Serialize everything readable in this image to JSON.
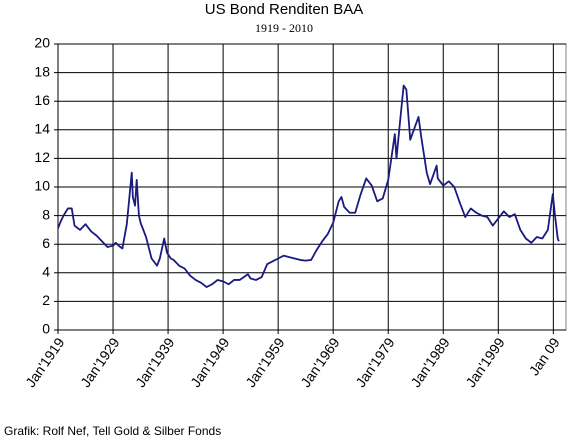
{
  "chart_data": {
    "type": "line",
    "title": "US Bond Renditen BAA",
    "subtitle": "1919 - 2010",
    "annotation": "Grafik: Rolf Nef, Tell Gold & Silber Fonds",
    "x": [
      1919,
      1919.5,
      1920,
      1920.8,
      1921.5,
      1922,
      1923,
      1924,
      1925,
      1926,
      1927,
      1928,
      1929,
      1929.5,
      1930,
      1930.7,
      1931.5,
      1932.4,
      1932.6,
      1933,
      1933.3,
      1933.7,
      1934,
      1934.7,
      1935,
      1936,
      1937,
      1937.5,
      1938.3,
      1938.8,
      1939.5,
      1940,
      1941,
      1942,
      1943,
      1944,
      1945,
      1946,
      1947,
      1948,
      1949,
      1950,
      1951,
      1952,
      1953.5,
      1954,
      1955,
      1956,
      1957,
      1958,
      1959,
      1960,
      1961,
      1962,
      1963,
      1964,
      1965,
      1966,
      1967,
      1968,
      1969,
      1970,
      1970.5,
      1971,
      1972,
      1973,
      1974,
      1975,
      1976,
      1977,
      1978,
      1979,
      1980.2,
      1980.5,
      1981,
      1981.8,
      1982.3,
      1982.8,
      1983,
      1984.5,
      1985,
      1986,
      1986.6,
      1987.8,
      1988,
      1989,
      1990,
      1991,
      1992,
      1993,
      1994,
      1995,
      1996,
      1997,
      1998,
      1999,
      2000,
      2001,
      2002,
      2003,
      2004,
      2005,
      2006,
      2007,
      2008,
      2008.9,
      2009.3,
      2009.8,
      2010
    ],
    "series": [
      {
        "name": "BAA",
        "color": "#1a1a80",
        "values": [
          7.1,
          7.6,
          8.0,
          8.5,
          8.5,
          7.3,
          7.0,
          7.4,
          6.9,
          6.6,
          6.2,
          5.8,
          5.9,
          6.1,
          5.9,
          5.7,
          7.4,
          11.0,
          9.3,
          8.7,
          10.5,
          8.0,
          7.5,
          6.8,
          6.5,
          5.0,
          4.5,
          5.0,
          6.4,
          5.4,
          5.0,
          4.9,
          4.5,
          4.3,
          3.8,
          3.5,
          3.3,
          3.0,
          3.2,
          3.5,
          3.4,
          3.2,
          3.5,
          3.5,
          3.9,
          3.6,
          3.5,
          3.7,
          4.6,
          4.8,
          5.0,
          5.2,
          5.1,
          5.0,
          4.9,
          4.85,
          4.9,
          5.6,
          6.2,
          6.7,
          7.5,
          9.0,
          9.3,
          8.6,
          8.2,
          8.2,
          9.5,
          10.6,
          10.1,
          9.0,
          9.2,
          10.5,
          13.7,
          12.0,
          14.0,
          17.1,
          16.8,
          14.3,
          13.3,
          14.9,
          13.5,
          11.0,
          10.2,
          11.5,
          10.6,
          10.1,
          10.4,
          10.0,
          8.9,
          7.9,
          8.5,
          8.2,
          8.0,
          7.9,
          7.3,
          7.8,
          8.3,
          7.9,
          8.1,
          7.0,
          6.4,
          6.1,
          6.5,
          6.4,
          7.0,
          9.5,
          8.0,
          6.4,
          6.2
        ]
      }
    ],
    "xlim": [
      1919,
      2011.3
    ],
    "xticks": [
      {
        "value": 1919,
        "label": "Jan'1919"
      },
      {
        "value": 1929,
        "label": "Jan'1929"
      },
      {
        "value": 1939,
        "label": "Jan'1939"
      },
      {
        "value": 1949,
        "label": "Jan'1949"
      },
      {
        "value": 1959,
        "label": "Jan'1959"
      },
      {
        "value": 1969,
        "label": "Jan'1969"
      },
      {
        "value": 1979,
        "label": "Jan'1979"
      },
      {
        "value": 1989,
        "label": "Jan'1989"
      },
      {
        "value": 1999,
        "label": "Jan'1999"
      },
      {
        "value": 2009,
        "label": "Jan 09"
      }
    ],
    "ylim": [
      0,
      20
    ],
    "yticks": [
      0,
      2,
      4,
      6,
      8,
      10,
      12,
      14,
      16,
      18,
      20
    ],
    "grid": true
  }
}
